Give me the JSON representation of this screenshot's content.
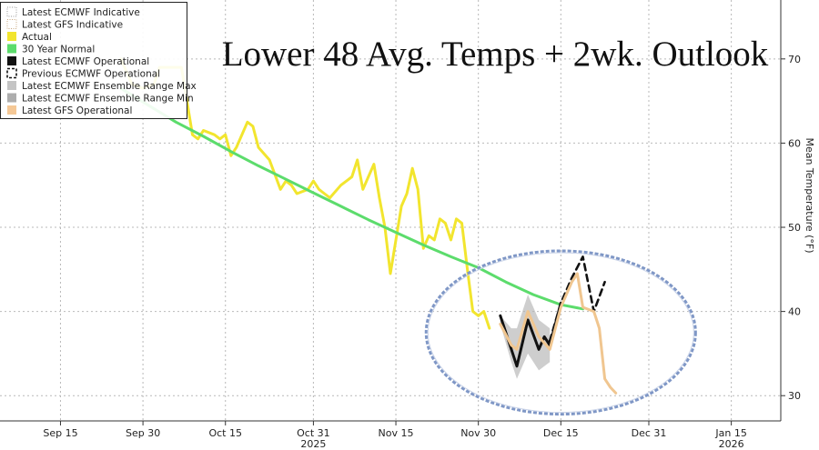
{
  "chart_data": {
    "type": "line",
    "title": "Lower 48 Avg. Temps + 2wk. Outlook",
    "ylabel": "Mean Temperature (°F)",
    "xlabel": "",
    "ylim": [
      27,
      77
    ],
    "xlim": [
      "2025-09-04",
      "2026-01-24"
    ],
    "grid": true,
    "legend_position": "top-left",
    "x_ticks": [
      {
        "date": "2025-09-15",
        "label": "Sep 15"
      },
      {
        "date": "2025-09-30",
        "label": "Sep 30"
      },
      {
        "date": "2025-10-15",
        "label": "Oct 15"
      },
      {
        "date": "2025-10-31",
        "label": "Oct 31"
      },
      {
        "date": "2025-11-15",
        "label": "Nov 15"
      },
      {
        "date": "2025-11-30",
        "label": "Nov 30"
      },
      {
        "date": "2025-12-15",
        "label": "Dec 15"
      },
      {
        "date": "2025-12-31",
        "label": "Dec 31"
      },
      {
        "date": "2026-01-15",
        "label": "Jan 15"
      }
    ],
    "year_labels": [
      {
        "date": "2025-10-31",
        "label": "2025"
      },
      {
        "date": "2026-01-15",
        "label": "2026"
      }
    ],
    "y_ticks": [
      30,
      40,
      50,
      60,
      70
    ],
    "legend": [
      {
        "name": "Latest ECMWF Indicative",
        "swatch": "dotted-box",
        "color": "#9a9a9a"
      },
      {
        "name": "Latest GFS Indicative",
        "swatch": "dotted-box",
        "color": "#c8a882"
      },
      {
        "name": "Actual",
        "swatch": "fill",
        "color": "#f2e52e"
      },
      {
        "name": "30 Year Normal",
        "swatch": "fill",
        "color": "#5cdc6c"
      },
      {
        "name": "Latest ECMWF Operational",
        "swatch": "fill",
        "color": "#111111"
      },
      {
        "name": "Previous ECMWF Operational",
        "swatch": "dashed-box",
        "color": "#111111"
      },
      {
        "name": "Latest ECMWF Ensemble Range Max",
        "swatch": "fill",
        "color": "#c4c4c4"
      },
      {
        "name": "Latest ECMWF Ensemble Range Min",
        "swatch": "fill",
        "color": "#adadad"
      },
      {
        "name": "Latest GFS Operational",
        "swatch": "fill",
        "color": "#f5c896"
      }
    ],
    "series": [
      {
        "name": "Actual",
        "color": "#f2e52e",
        "points": [
          [
            "2025-09-26",
            70
          ],
          [
            "2025-09-28",
            67
          ],
          [
            "2025-09-30",
            66.5
          ],
          [
            "2025-10-02",
            67
          ],
          [
            "2025-10-03",
            69
          ],
          [
            "2025-10-05",
            69
          ],
          [
            "2025-10-07",
            69
          ],
          [
            "2025-10-09",
            61
          ],
          [
            "2025-10-10",
            60.5
          ],
          [
            "2025-10-11",
            61.5
          ],
          [
            "2025-10-13",
            61
          ],
          [
            "2025-10-14",
            60.5
          ],
          [
            "2025-10-15",
            61
          ],
          [
            "2025-10-16",
            58.5
          ],
          [
            "2025-10-17",
            59.5
          ],
          [
            "2025-10-19",
            62.5
          ],
          [
            "2025-10-20",
            62
          ],
          [
            "2025-10-21",
            59.5
          ],
          [
            "2025-10-23",
            58
          ],
          [
            "2025-10-25",
            54.5
          ],
          [
            "2025-10-26",
            55.5
          ],
          [
            "2025-10-27",
            55
          ],
          [
            "2025-10-28",
            54
          ],
          [
            "2025-10-30",
            54.5
          ],
          [
            "2025-10-31",
            55.5
          ],
          [
            "2025-11-01",
            54.5
          ],
          [
            "2025-11-02",
            54
          ],
          [
            "2025-11-03",
            53.5
          ],
          [
            "2025-11-05",
            55
          ],
          [
            "2025-11-07",
            56
          ],
          [
            "2025-11-08",
            58
          ],
          [
            "2025-11-09",
            54.5
          ],
          [
            "2025-11-10",
            56
          ],
          [
            "2025-11-11",
            57.5
          ],
          [
            "2025-11-12",
            53.5
          ],
          [
            "2025-11-13",
            50
          ],
          [
            "2025-11-14",
            44.5
          ],
          [
            "2025-11-16",
            52.5
          ],
          [
            "2025-11-17",
            54
          ],
          [
            "2025-11-18",
            57
          ],
          [
            "2025-11-19",
            54.5
          ],
          [
            "2025-11-20",
            47.5
          ],
          [
            "2025-11-21",
            49
          ],
          [
            "2025-11-22",
            48.5
          ],
          [
            "2025-11-23",
            51
          ],
          [
            "2025-11-24",
            50.5
          ],
          [
            "2025-11-25",
            48.5
          ],
          [
            "2025-11-26",
            51
          ],
          [
            "2025-11-27",
            50.5
          ],
          [
            "2025-11-28",
            45
          ],
          [
            "2025-11-29",
            40
          ],
          [
            "2025-11-30",
            39.5
          ],
          [
            "2025-12-01",
            40
          ],
          [
            "2025-12-02",
            38
          ]
        ]
      },
      {
        "name": "30 Year Normal",
        "color": "#5cdc6c",
        "points": [
          [
            "2025-09-26",
            66.5
          ],
          [
            "2025-10-01",
            64.5
          ],
          [
            "2025-10-06",
            62.5
          ],
          [
            "2025-10-11",
            60.8
          ],
          [
            "2025-10-16",
            59
          ],
          [
            "2025-10-21",
            57.3
          ],
          [
            "2025-10-26",
            55.7
          ],
          [
            "2025-10-31",
            54.1
          ],
          [
            "2025-11-05",
            52.5
          ],
          [
            "2025-11-10",
            50.9
          ],
          [
            "2025-11-15",
            49.4
          ],
          [
            "2025-11-20",
            47.9
          ],
          [
            "2025-11-25",
            46.5
          ],
          [
            "2025-11-30",
            45.2
          ],
          [
            "2025-12-05",
            43.5
          ],
          [
            "2025-12-10",
            42
          ],
          [
            "2025-12-15",
            40.8
          ],
          [
            "2025-12-19",
            40.3
          ]
        ]
      },
      {
        "name": "Latest ECMWF Operational",
        "color": "#111111",
        "points": [
          [
            "2025-12-04",
            39.5
          ],
          [
            "2025-12-07",
            33.5
          ],
          [
            "2025-12-09",
            39
          ],
          [
            "2025-12-11",
            35.5
          ],
          [
            "2025-12-12",
            37
          ],
          [
            "2025-12-13",
            36
          ],
          [
            "2025-12-15",
            41
          ]
        ]
      },
      {
        "name": "Previous ECMWF Operational",
        "color": "#111111",
        "dashed": true,
        "points": [
          [
            "2025-12-13",
            36.5
          ],
          [
            "2025-12-15",
            41
          ],
          [
            "2025-12-17",
            44
          ],
          [
            "2025-12-19",
            46.5
          ],
          [
            "2025-12-21",
            40
          ],
          [
            "2025-12-23",
            43.5
          ]
        ]
      },
      {
        "name": "Latest GFS Operational",
        "color": "#f0c690",
        "points": [
          [
            "2025-12-04",
            38.5
          ],
          [
            "2025-12-06",
            36
          ],
          [
            "2025-12-07",
            35.5
          ],
          [
            "2025-12-09",
            40
          ],
          [
            "2025-12-11",
            37
          ],
          [
            "2025-12-13",
            35.5
          ],
          [
            "2025-12-15",
            40.5
          ],
          [
            "2025-12-17",
            43.5
          ],
          [
            "2025-12-18",
            44.5
          ],
          [
            "2025-12-19",
            40.5
          ],
          [
            "2025-12-21",
            40
          ],
          [
            "2025-12-22",
            38
          ],
          [
            "2025-12-23",
            32
          ],
          [
            "2025-12-24",
            31
          ],
          [
            "2025-12-25",
            30.3
          ]
        ]
      }
    ],
    "ensemble_range": {
      "name": "Latest ECMWF Ensemble Range",
      "color": "#b4b4b4",
      "max": [
        [
          "2025-12-04",
          39.5
        ],
        [
          "2025-12-06",
          38
        ],
        [
          "2025-12-07",
          38
        ],
        [
          "2025-12-09",
          42
        ],
        [
          "2025-12-11",
          39
        ],
        [
          "2025-12-13",
          38
        ]
      ],
      "min": [
        [
          "2025-12-04",
          38.5
        ],
        [
          "2025-12-06",
          34
        ],
        [
          "2025-12-07",
          32
        ],
        [
          "2025-12-09",
          35
        ],
        [
          "2025-12-11",
          33
        ],
        [
          "2025-12-13",
          34
        ]
      ]
    },
    "annotations": [
      {
        "type": "ellipse",
        "center": [
          "2025-12-15",
          37.5
        ],
        "radius_days": 24.5,
        "radius_degF": 9.7,
        "color": "#7f97c6"
      }
    ]
  }
}
